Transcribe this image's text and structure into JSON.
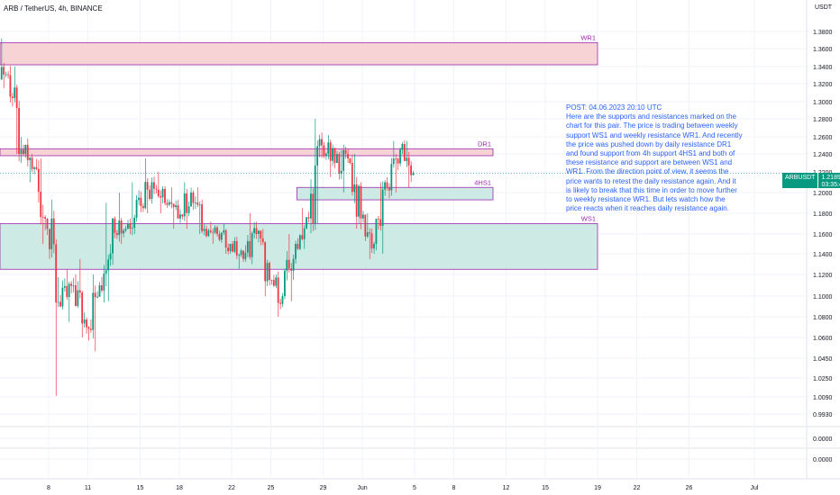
{
  "header": {
    "title": "ARB / TetherUS, 4h, BINANCE",
    "currency": "USDT"
  },
  "price_tag": {
    "symbol": "ARBUSDT",
    "price": "1.2189",
    "countdown": "03:35:49"
  },
  "note": {
    "text": "POST: 04.06.2023 20:10 UTC\nHere are the supports and resistances marked on the chart for this pair. The price is trading between weekly support WS1 and weekly resistance WR1. And recently the price was pushed down by daily resistance DR1 and found support from 4h support 4HS1 and both of these resistance and support are between WS1 and WR1. From the direction point of view, it seems the price wants to retest the daily resistance again. And it is likely to break that this time in order to move further to weekly resistance WR1. But lets watch how the price reacts when it reaches daily resistance again."
  },
  "colors": {
    "up": "#089981",
    "down": "#f23645",
    "resistance_fill": "#f8d3d6",
    "support_fill": "#cdeae4",
    "zone_border": "#9c27b0",
    "zone_label": "#9c27b0",
    "note_text": "#2962ff"
  },
  "zones": [
    {
      "label": "WR1",
      "type": "resistance",
      "low": 1.342,
      "high": 1.367,
      "x_start": "2023-05-02",
      "x_end": "2023-06-19"
    },
    {
      "label": "DR1",
      "type": "resistance",
      "low": 1.238,
      "high": 1.246,
      "x_start": "2023-05-02",
      "x_end": "2023-06-11"
    },
    {
      "label": "4HS1",
      "type": "support",
      "low": 1.193,
      "high": 1.205,
      "x_start": "2023-05-27",
      "x_end": "2023-06-11"
    },
    {
      "label": "WS1",
      "type": "support",
      "low": 1.125,
      "high": 1.17,
      "x_start": "2023-05-02",
      "x_end": "2023-06-19"
    }
  ],
  "chart_data": {
    "type": "candlestick",
    "title": "ARB / TetherUS, 4h, BINANCE",
    "ylabel": "USDT",
    "y_ticks": [
      "1.3800",
      "1.3600",
      "1.3400",
      "1.3200",
      "1.3000",
      "1.2800",
      "1.2600",
      "1.2400",
      "1.2200",
      "1.2000",
      "1.1800",
      "1.1600",
      "1.1400",
      "1.1200",
      "1.1000",
      "1.0800",
      "1.0600",
      "1.0450",
      "1.0250",
      "1.0090",
      "0.9930",
      "0.0000",
      "0.0000"
    ],
    "x_ticks": [
      "8",
      "11",
      "15",
      "18",
      "22",
      "25",
      "29",
      "Jun",
      "5",
      "8",
      "12",
      "15",
      "19",
      "22",
      "26",
      "Jul"
    ],
    "last_price": 1.2189,
    "candles_daily_summary": [
      {
        "date": "2023-05-04",
        "open": 1.345,
        "high": 1.372,
        "low": 1.315,
        "close": 1.33
      },
      {
        "date": "2023-05-05",
        "open": 1.33,
        "high": 1.34,
        "low": 1.24,
        "close": 1.245
      },
      {
        "date": "2023-05-06",
        "open": 1.245,
        "high": 1.258,
        "low": 1.21,
        "close": 1.225
      },
      {
        "date": "2023-05-07",
        "open": 1.225,
        "high": 1.235,
        "low": 1.15,
        "close": 1.165
      },
      {
        "date": "2023-05-08",
        "open": 1.165,
        "high": 1.175,
        "low": 1.01,
        "close": 1.09
      },
      {
        "date": "2023-05-09",
        "open": 1.09,
        "high": 1.125,
        "low": 1.075,
        "close": 1.11
      },
      {
        "date": "2023-05-10",
        "open": 1.11,
        "high": 1.135,
        "low": 1.06,
        "close": 1.07
      },
      {
        "date": "2023-05-11",
        "open": 1.07,
        "high": 1.12,
        "low": 1.05,
        "close": 1.11
      },
      {
        "date": "2023-05-12",
        "open": 1.11,
        "high": 1.19,
        "low": 1.095,
        "close": 1.175
      },
      {
        "date": "2023-05-13",
        "open": 1.175,
        "high": 1.2,
        "low": 1.15,
        "close": 1.165
      },
      {
        "date": "2023-05-14",
        "open": 1.165,
        "high": 1.21,
        "low": 1.16,
        "close": 1.195
      },
      {
        "date": "2023-05-15",
        "open": 1.195,
        "high": 1.235,
        "low": 1.18,
        "close": 1.21
      },
      {
        "date": "2023-05-16",
        "open": 1.21,
        "high": 1.22,
        "low": 1.18,
        "close": 1.19
      },
      {
        "date": "2023-05-17",
        "open": 1.19,
        "high": 1.205,
        "low": 1.165,
        "close": 1.175
      },
      {
        "date": "2023-05-18",
        "open": 1.175,
        "high": 1.21,
        "low": 1.165,
        "close": 1.2
      },
      {
        "date": "2023-05-19",
        "open": 1.2,
        "high": 1.205,
        "low": 1.16,
        "close": 1.165
      },
      {
        "date": "2023-05-20",
        "open": 1.165,
        "high": 1.172,
        "low": 1.15,
        "close": 1.16
      },
      {
        "date": "2023-05-21",
        "open": 1.16,
        "high": 1.17,
        "low": 1.14,
        "close": 1.15
      },
      {
        "date": "2023-05-22",
        "open": 1.15,
        "high": 1.155,
        "low": 1.125,
        "close": 1.135
      },
      {
        "date": "2023-05-23",
        "open": 1.135,
        "high": 1.18,
        "low": 1.13,
        "close": 1.16
      },
      {
        "date": "2023-05-24",
        "open": 1.16,
        "high": 1.165,
        "low": 1.1,
        "close": 1.115
      },
      {
        "date": "2023-05-25",
        "open": 1.115,
        "high": 1.12,
        "low": 1.08,
        "close": 1.1
      },
      {
        "date": "2023-05-26",
        "open": 1.1,
        "high": 1.16,
        "low": 1.095,
        "close": 1.15
      },
      {
        "date": "2023-05-27",
        "open": 1.15,
        "high": 1.185,
        "low": 1.145,
        "close": 1.175
      },
      {
        "date": "2023-05-28",
        "open": 1.175,
        "high": 1.28,
        "low": 1.17,
        "close": 1.25
      },
      {
        "date": "2023-05-29",
        "open": 1.25,
        "high": 1.262,
        "low": 1.215,
        "close": 1.23
      },
      {
        "date": "2023-05-30",
        "open": 1.23,
        "high": 1.245,
        "low": 1.2,
        "close": 1.235
      },
      {
        "date": "2023-05-31",
        "open": 1.235,
        "high": 1.24,
        "low": 1.165,
        "close": 1.175
      },
      {
        "date": "2023-06-01",
        "open": 1.175,
        "high": 1.18,
        "low": 1.135,
        "close": 1.15
      },
      {
        "date": "2023-06-02",
        "open": 1.15,
        "high": 1.21,
        "low": 1.14,
        "close": 1.205
      },
      {
        "date": "2023-06-03",
        "open": 1.205,
        "high": 1.255,
        "low": 1.2,
        "close": 1.245
      },
      {
        "date": "2023-06-04",
        "open": 1.245,
        "high": 1.255,
        "low": 1.205,
        "close": 1.2189
      }
    ]
  }
}
